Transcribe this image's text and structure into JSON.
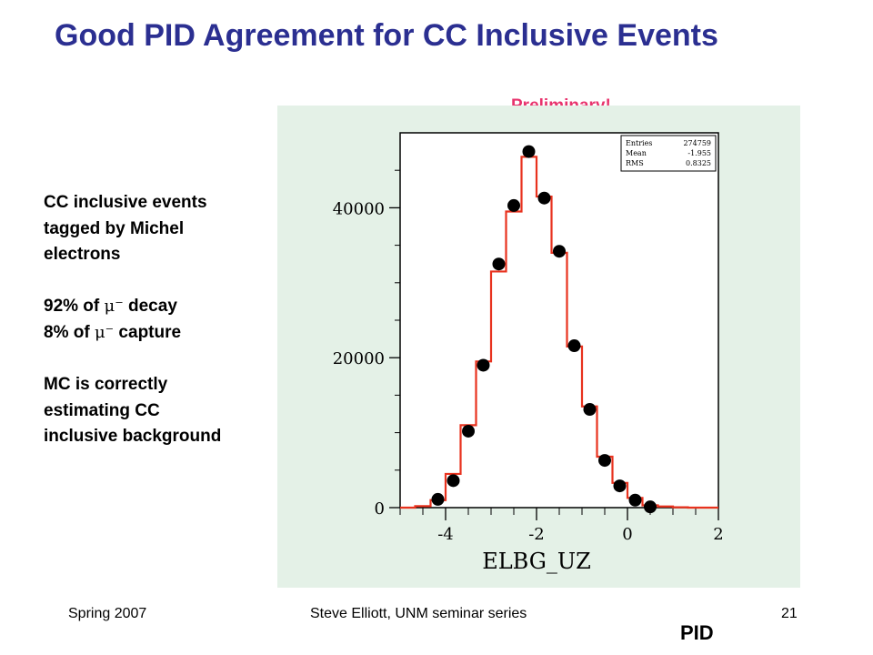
{
  "slide": {
    "title": "Good PID Agreement for CC Inclusive Events",
    "preliminary": "Preliminary!",
    "bullets": {
      "p1": [
        "CC inclusive events",
        "tagged by Michel",
        "electrons"
      ],
      "p2_line1_pre": "92% of ",
      "p2_line1_post": " decay",
      "p2_line2_pre": "8% of ",
      "p2_line2_post": " capture",
      "mu_symbol": "μ⁻",
      "p3": [
        "MC is correctly",
        "estimating CC",
        "inclusive background"
      ]
    },
    "footer_left": "Spring 2007",
    "footer_center": "Steve Elliott, UNM seminar series",
    "footer_right": "21",
    "section_label": "PID"
  },
  "colors": {
    "title": "#2b2f91",
    "preliminary": "#e8336d",
    "plot_background": "#e4f1e7",
    "histogram_line": "#e8321e",
    "data_points": "#000000"
  },
  "chart_data": {
    "type": "line",
    "title": "",
    "xlabel": "ELBG_UZ",
    "ylabel": "",
    "xlim": [
      -5,
      2
    ],
    "ylim": [
      0,
      50000
    ],
    "x_ticks": [
      -4,
      -2,
      0,
      2
    ],
    "y_ticks": [
      0,
      20000,
      40000
    ],
    "grid": false,
    "stats_box": {
      "rows": [
        {
          "label": "Entries",
          "value": "274759"
        },
        {
          "label": "Mean",
          "value": "-1.955"
        },
        {
          "label": "RMS",
          "value": "0.8325"
        }
      ],
      "placement": "top-right"
    },
    "series": [
      {
        "style": "step",
        "bin_edges": [
          -5.0,
          -4.67,
          -4.33,
          -4.0,
          -3.67,
          -3.33,
          -3.0,
          -2.67,
          -2.33,
          -2.0,
          -1.67,
          -1.33,
          -1.0,
          -0.67,
          -0.33,
          0.0,
          0.33,
          0.67,
          1.0,
          1.33,
          1.67,
          2.0
        ],
        "values": [
          0,
          200,
          1000,
          4500,
          11000,
          19500,
          31500,
          39500,
          46800,
          41500,
          34000,
          21500,
          13500,
          6800,
          3300,
          1300,
          300,
          150,
          50,
          0,
          0
        ]
      },
      {
        "style": "points",
        "x": [
          -4.17,
          -3.83,
          -3.5,
          -3.17,
          -2.83,
          -2.5,
          -2.17,
          -1.83,
          -1.5,
          -1.17,
          -0.83,
          -0.5,
          -0.17,
          0.17,
          0.5
        ],
        "y": [
          1100,
          3600,
          10200,
          19000,
          32500,
          40300,
          47500,
          41300,
          34200,
          21600,
          13100,
          6300,
          2900,
          1000,
          100
        ]
      }
    ]
  }
}
